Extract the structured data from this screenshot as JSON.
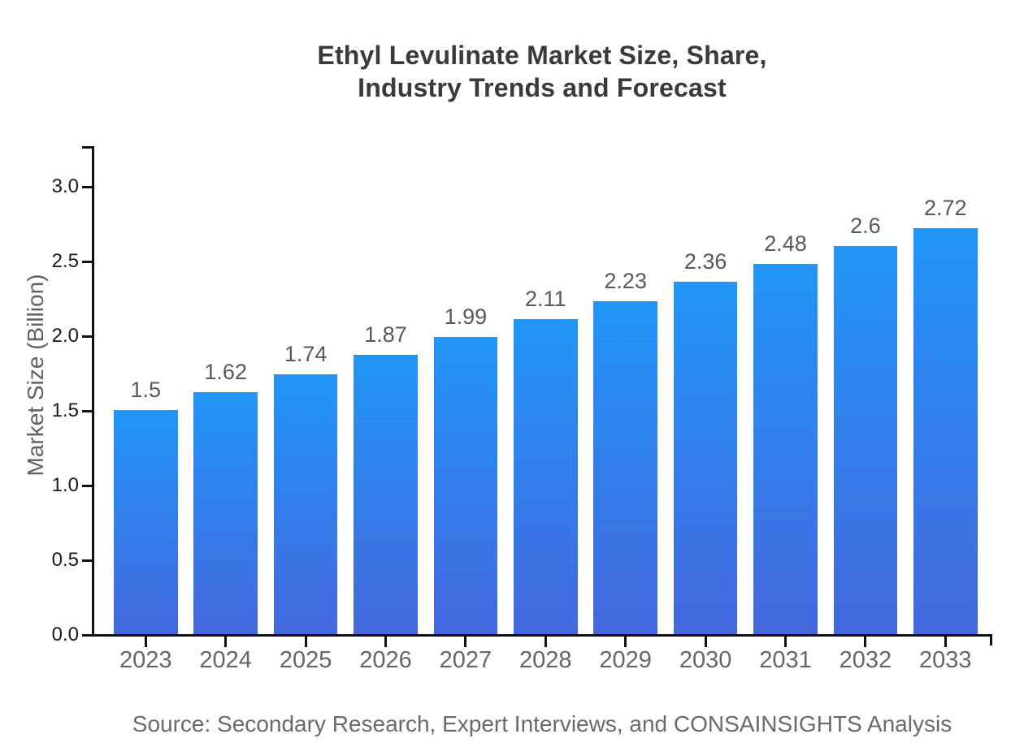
{
  "chart_data": {
    "type": "bar",
    "title": "Ethyl Levulinate Market Size, Share,\nIndustry Trends and Forecast",
    "xlabel": "",
    "ylabel": "Market Size (Billion)",
    "categories": [
      "2023",
      "2024",
      "2025",
      "2026",
      "2027",
      "2028",
      "2029",
      "2030",
      "2031",
      "2032",
      "2033"
    ],
    "values": [
      1.5,
      1.62,
      1.74,
      1.87,
      1.99,
      2.11,
      2.23,
      2.36,
      2.48,
      2.6,
      2.72
    ],
    "value_labels": [
      "1.5",
      "1.62",
      "1.74",
      "1.87",
      "1.99",
      "2.11",
      "2.23",
      "2.36",
      "2.48",
      "2.6",
      "2.72"
    ],
    "yticks": [
      {
        "value": 0.0,
        "label": "0.0"
      },
      {
        "value": 0.5,
        "label": "0.5"
      },
      {
        "value": 1.0,
        "label": "1.0"
      },
      {
        "value": 1.5,
        "label": "1.5"
      },
      {
        "value": 2.0,
        "label": "2.0"
      },
      {
        "value": 2.5,
        "label": "2.5"
      },
      {
        "value": 3.0,
        "label": "3.0"
      }
    ],
    "ylim": [
      0,
      3.27
    ],
    "grid": false,
    "legend": null,
    "source": "Source: Secondary Research, Expert Interviews, and CONSAINSIGHTS Analysis"
  },
  "colors": {
    "bar-top": "#2196f7",
    "bar-bottom": "#4467de",
    "axis-color": "#111111",
    "title-color": "#3a3a3a",
    "ytick-color": "#1a1a1a",
    "xtick-color": "#666666",
    "value-label-color": "#595959",
    "ylabel-color": "#616161",
    "source-color": "#6a6a6a"
  }
}
